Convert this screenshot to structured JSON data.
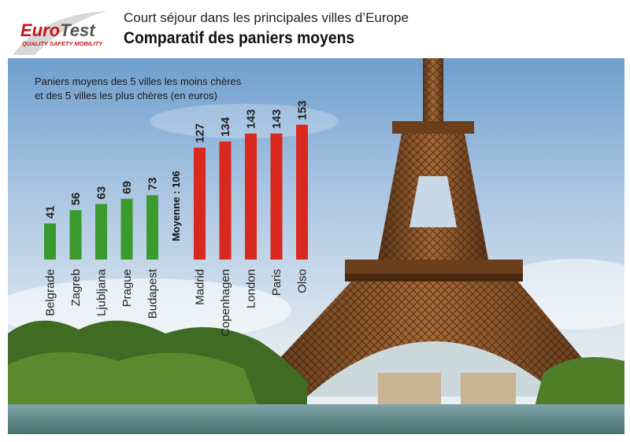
{
  "header": {
    "logo_brand": "EuroTest",
    "logo_tagline": "QUALITY SAFETY MOBILITY",
    "subtitle": "Court séjour dans les principales villes d’Europe",
    "title": "Comparatif des paniers moyens"
  },
  "description": {
    "line1": "Paniers moyens des 5 villes les moins chères",
    "line2": "et des 5 villes les plus chères (en euros)"
  },
  "colors": {
    "cheap": "#3a9a2e",
    "expensive": "#d9281e",
    "brand_red": "#c4161c",
    "brand_grey": "#555555"
  },
  "chart_data": {
    "type": "bar",
    "ylim": [
      0,
      160
    ],
    "average_label": "Moyenne : 106",
    "series": [
      {
        "group": "cheapest",
        "color": "#3a9a2e",
        "categories": [
          "Belgrade",
          "Zagreb",
          "Ljubljana",
          "Prague",
          "Budapest"
        ],
        "values": [
          41,
          56,
          63,
          69,
          73
        ]
      },
      {
        "group": "most_expensive",
        "color": "#d9281e",
        "categories": [
          "Madrid",
          "Copenhagen",
          "London",
          "Paris",
          "Olso"
        ],
        "values": [
          127,
          134,
          143,
          143,
          153
        ]
      }
    ]
  }
}
